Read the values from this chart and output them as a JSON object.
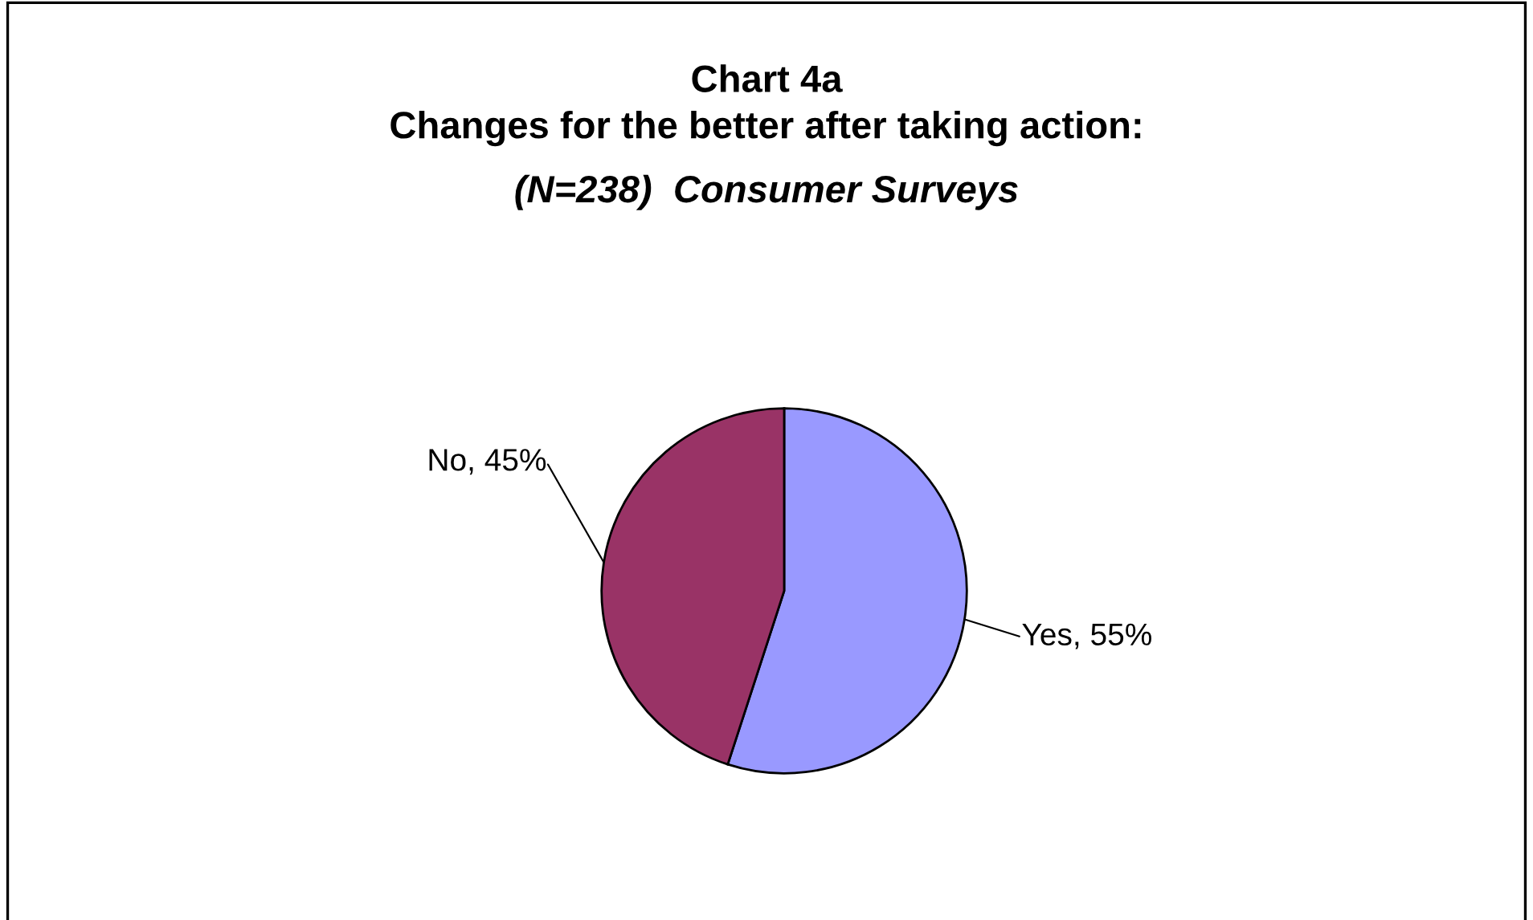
{
  "chart_data": {
    "type": "pie",
    "title": "Chart 4a\nChanges for the better after taking action:",
    "subtitle": "(N=238)  Consumer Surveys",
    "categories": [
      "Yes",
      "No"
    ],
    "values": [
      55,
      45
    ],
    "colors": [
      "#9999ff",
      "#993366"
    ],
    "value_labels": [
      ", 55%",
      ", 45%"
    ],
    "legend": false
  }
}
